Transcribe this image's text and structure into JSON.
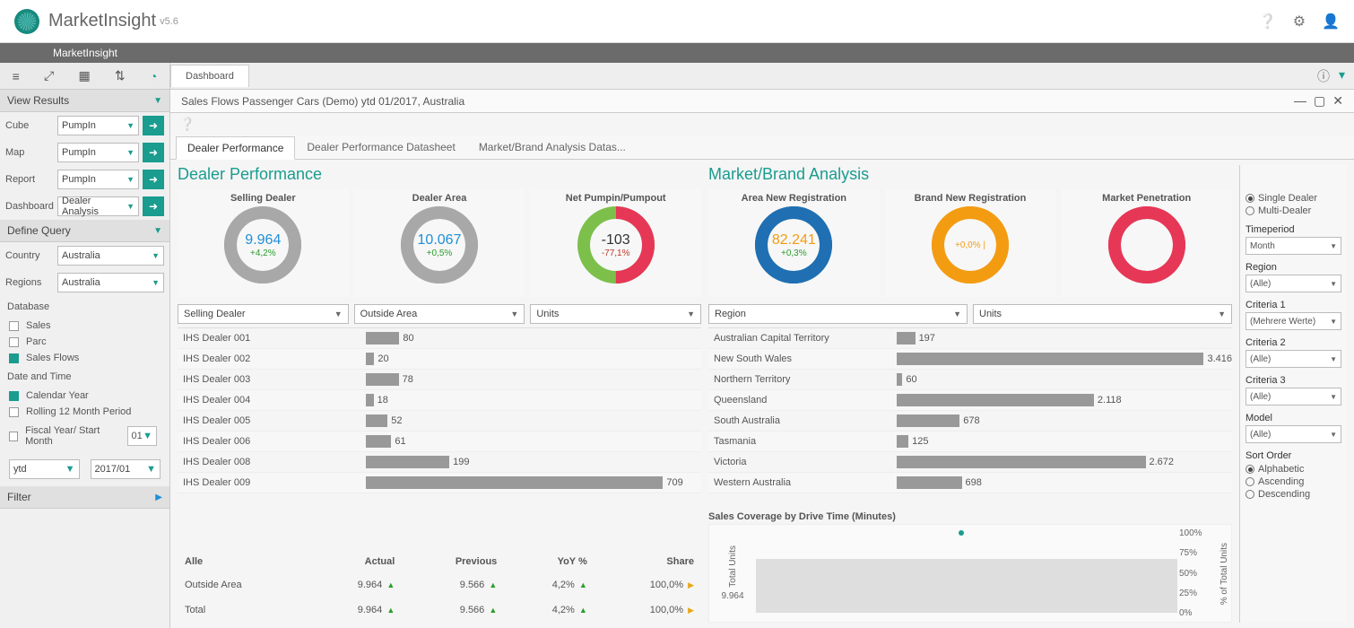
{
  "app": {
    "name": "MarketInsight",
    "version": "v5.6",
    "grey_bar": "MarketInsight"
  },
  "header_icons": [
    "help",
    "settings",
    "user"
  ],
  "left_toolbar_icons": [
    "≡",
    "✕",
    "▦",
    "⇅",
    "◔"
  ],
  "sidebar": {
    "view_results": "View Results",
    "rows": [
      {
        "label": "Cube",
        "value": "PumpIn"
      },
      {
        "label": "Map",
        "value": "PumpIn"
      },
      {
        "label": "Report",
        "value": "PumpIn"
      },
      {
        "label": "Dashboard",
        "value": "Dealer Analysis"
      }
    ],
    "define_query": "Define Query",
    "country": {
      "label": "Country",
      "value": "Australia"
    },
    "regions": {
      "label": "Regions",
      "value": "Australia"
    },
    "database": {
      "label": "Database",
      "items": [
        {
          "label": "Sales",
          "checked": false
        },
        {
          "label": "Parc",
          "checked": false
        },
        {
          "label": "Sales Flows",
          "checked": true
        }
      ]
    },
    "date_time": {
      "label": "Date and Time",
      "items": [
        {
          "label": "Calendar Year",
          "checked": true
        },
        {
          "label": "Rolling 12 Month Period",
          "checked": false
        },
        {
          "label": "Fiscal Year/ Start Month",
          "checked": false,
          "extra": "01"
        }
      ],
      "range_type": "ytd",
      "range_value": "2017/01"
    },
    "filter": "Filter"
  },
  "tabs": {
    "main": "Dashboard"
  },
  "breadcrumb": "Sales Flows Passenger Cars (Demo) ytd 01/2017, Australia",
  "sub_tabs": [
    "Dealer Performance",
    "Dealer Performance Datasheet",
    "Market/Brand Analysis Datas..."
  ],
  "dealer_panel": {
    "title": "Dealer Performance",
    "kpis": [
      {
        "title": "Selling Dealer",
        "value": "9.964",
        "delta": "+4,2%",
        "value_color": "#1f8fd6",
        "delta_color": "#2a9d2a",
        "ring_color": "#a8a8a8",
        "ring_bg": "#a8a8a8"
      },
      {
        "title": "Dealer Area",
        "value": "10.067",
        "delta": "+0,5%",
        "value_color": "#1f8fd6",
        "delta_color": "#2a9d2a",
        "ring_color": "#a8a8a8",
        "ring_bg": "#a8a8a8"
      },
      {
        "title": "Net Pumpin/Pumpout",
        "value": "-103",
        "delta": "-77,1%",
        "value_color": "#333",
        "delta_color": "#c0392b",
        "ring_color": "#e63757",
        "ring_bg": "#7cc04b",
        "ring_pct": 50
      }
    ],
    "filters": [
      "Selling Dealer",
      "Outside Area",
      "Units"
    ],
    "bars": {
      "max": 800,
      "rows": [
        {
          "label": "IHS Dealer 001",
          "value": 80
        },
        {
          "label": "IHS Dealer 002",
          "value": 20
        },
        {
          "label": "IHS Dealer 003",
          "value": 78
        },
        {
          "label": "IHS Dealer 004",
          "value": 18
        },
        {
          "label": "IHS Dealer 005",
          "value": 52
        },
        {
          "label": "IHS Dealer 006",
          "value": 61
        },
        {
          "label": "IHS Dealer 008",
          "value": 199
        },
        {
          "label": "IHS Dealer 009",
          "value": 709
        }
      ],
      "bar_color": "#999"
    },
    "summary": {
      "headers": [
        "Alle",
        "Actual",
        "Previous",
        "YoY %",
        "Share"
      ],
      "rows": [
        {
          "label": "Outside Area",
          "actual": "9.964",
          "previous": "9.566",
          "yoy": "4,2%",
          "share": "100,0%"
        },
        {
          "label": "Total",
          "actual": "9.964",
          "previous": "9.566",
          "yoy": "4,2%",
          "share": "100,0%"
        }
      ]
    }
  },
  "market_panel": {
    "title": "Market/Brand Analysis",
    "kpis": [
      {
        "title": "Area New Registration",
        "value": "82.241",
        "delta": "+0,3%",
        "value_color": "#f39c12",
        "delta_color": "#2a9d2a",
        "ring_color": "#1f6fb2",
        "ring_bg": "#1f6fb2"
      },
      {
        "title": "Brand New Registration",
        "value": "",
        "delta": "+0,0% |",
        "value_color": "#f39c12",
        "delta_color": "#f39c12",
        "ring_color": "#f39c12",
        "ring_bg": "#f39c12"
      },
      {
        "title": "Market Penetration",
        "value": "",
        "delta": "",
        "value_color": "#e63757",
        "delta_color": "#e63757",
        "ring_color": "#e63757",
        "ring_bg": "#e63757"
      }
    ],
    "filters": [
      "Region",
      "Units"
    ],
    "bars": {
      "max": 3600,
      "rows": [
        {
          "label": "Australian Capital Territory",
          "value": 197
        },
        {
          "label": "New South Wales",
          "value": 3416,
          "display": "3.416"
        },
        {
          "label": "Northern Territory",
          "value": 60
        },
        {
          "label": "Queensland",
          "value": 2118,
          "display": "2.118"
        },
        {
          "label": "South Australia",
          "value": 678
        },
        {
          "label": "Tasmania",
          "value": 125
        },
        {
          "label": "Victoria",
          "value": 2672,
          "display": "2.672"
        },
        {
          "label": "Western Australia",
          "value": 698
        }
      ],
      "bar_color": "#999"
    },
    "coverage": {
      "title": "Sales Coverage by Drive Time (Minutes)",
      "y_left_label": "Total Units",
      "y_left_value": "9.964",
      "y_right_label": "% of Total Units",
      "y_right_ticks": [
        "100%",
        "75%",
        "50%",
        "25%",
        "0%"
      ]
    }
  },
  "right": {
    "dealer_mode": {
      "single": "Single Dealer",
      "multi": "Multi-Dealer",
      "selected": "single"
    },
    "timeperiod": {
      "label": "Timeperiod",
      "value": "Month"
    },
    "region": {
      "label": "Region",
      "value": "(Alle)"
    },
    "criteria1": {
      "label": "Criteria 1",
      "value": "(Mehrere Werte)"
    },
    "criteria2": {
      "label": "Criteria 2",
      "value": "(Alle)"
    },
    "criteria3": {
      "label": "Criteria 3",
      "value": "(Alle)"
    },
    "model": {
      "label": "Model",
      "value": "(Alle)"
    },
    "sort": {
      "label": "Sort Order",
      "options": [
        "Alphabetic",
        "Ascending",
        "Descending"
      ],
      "selected": "Alphabetic"
    }
  }
}
